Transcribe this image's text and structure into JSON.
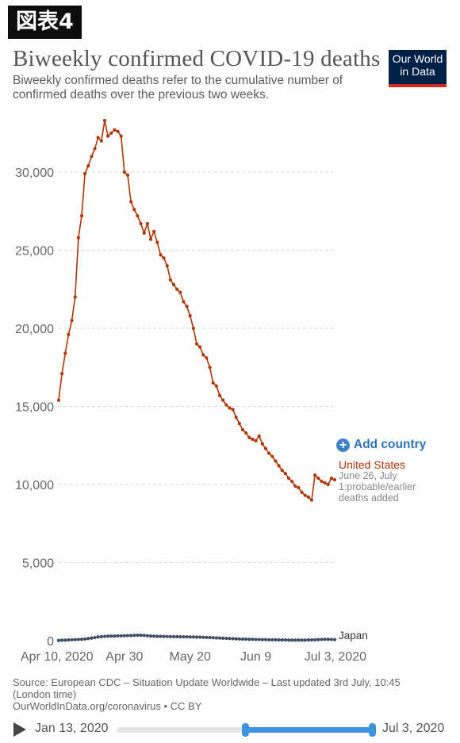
{
  "badge": "図表4",
  "title": "Biweekly confirmed COVID-19 deaths",
  "subtitle": "Biweekly confirmed deaths refer to the cumulative number of confirmed deaths over the previous two weeks.",
  "logo": {
    "line1": "Our World",
    "line2": "in Data",
    "bg": "#002147",
    "accent": "#d42b1e"
  },
  "add_country": {
    "icon": "plus-circle-icon",
    "label": "Add country"
  },
  "chart_data": {
    "type": "line",
    "ylim": [
      0,
      33000
    ],
    "y_ticks": [
      0,
      5000,
      10000,
      15000,
      20000,
      25000,
      30000
    ],
    "y_tick_labels": [
      "0",
      "5,000",
      "10,000",
      "15,000",
      "20,000",
      "25,000",
      "30,000"
    ],
    "x_ticks": [
      "Apr 10, 2020",
      "Apr 30",
      "May 20",
      "Jun 9",
      "Jul 3, 2020"
    ],
    "x_tick_days": [
      0,
      20,
      40,
      60,
      84
    ],
    "grid": "horizontal dashed",
    "series": [
      {
        "name": "United States",
        "color": "#b13507",
        "annotation": "June 26, July 1:probable/earlier deaths added",
        "values": [
          15400,
          17100,
          18400,
          19600,
          20500,
          22000,
          25800,
          27200,
          29900,
          30400,
          31000,
          31500,
          32200,
          32000,
          33300,
          32300,
          32500,
          32700,
          32600,
          32300,
          30000,
          29800,
          28100,
          27600,
          27200,
          26700,
          26100,
          26700,
          25700,
          26200,
          25500,
          24700,
          24500,
          24000,
          23100,
          22800,
          22500,
          22300,
          21700,
          21400,
          20800,
          20000,
          19000,
          18800,
          18300,
          18100,
          17500,
          16500,
          16300,
          15700,
          15400,
          15100,
          14900,
          14800,
          14300,
          13900,
          13500,
          13300,
          13000,
          12900,
          12800,
          13100,
          12600,
          12300,
          12000,
          11800,
          11500,
          11200,
          10900,
          10700,
          10400,
          10200,
          9900,
          9800,
          9500,
          9300,
          9200,
          9000,
          10600,
          10400,
          10200,
          10100,
          10000,
          10400,
          10300
        ]
      },
      {
        "name": "Japan",
        "color": "#3c4e66",
        "values": [
          20,
          30,
          40,
          50,
          60,
          70,
          80,
          90,
          110,
          140,
          170,
          200,
          240,
          260,
          280,
          290,
          300,
          300,
          310,
          310,
          320,
          330,
          330,
          340,
          350,
          350,
          340,
          320,
          300,
          290,
          280,
          280,
          270,
          270,
          260,
          260,
          260,
          250,
          250,
          250,
          240,
          240,
          230,
          230,
          220,
          210,
          200,
          190,
          180,
          170,
          160,
          150,
          140,
          130,
          120,
          110,
          100,
          100,
          90,
          90,
          80,
          80,
          70,
          70,
          60,
          60,
          60,
          50,
          50,
          50,
          40,
          40,
          40,
          40,
          40,
          40,
          50,
          50,
          60,
          70,
          80,
          90,
          90,
          80,
          70
        ]
      }
    ]
  },
  "source": {
    "line1": "Source: European CDC – Situation Update Worldwide – Last updated 3rd July, 10:45 (London time)",
    "line2": "OurWorldInData.org/coronavirus • CC BY"
  },
  "timeline": {
    "start_label": "Jan 13, 2020",
    "end_label": "Jul 3, 2020",
    "range_start_fraction": 0.5,
    "range_end_fraction": 1.0
  }
}
